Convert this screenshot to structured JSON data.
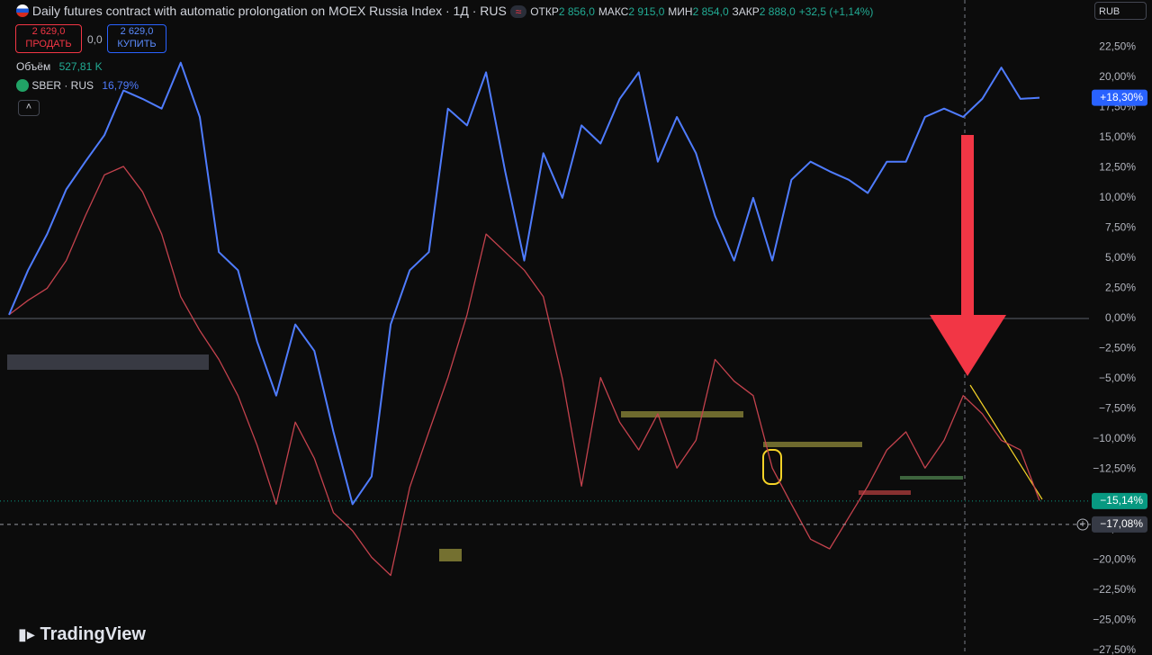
{
  "header": {
    "title": "Daily futures contract with automatic prolongation on MOEX Russia Index · 1Д · RUS",
    "open_label": "ОТКР",
    "open": "2 856,0",
    "high_label": "МАКС",
    "high": "2 915,0",
    "low_label": "МИН",
    "low": "2 854,0",
    "close_label": "ЗАКР",
    "close": "2 888,0",
    "change": "+32,5 (+1,14%)",
    "sell_price": "2 629,0",
    "sell": "ПРОДАТЬ",
    "spread": "0,0",
    "buy_price": "2 629,0",
    "buy": "КУПИТЬ",
    "volume_label": "Объём",
    "volume": "527,81 K",
    "sber_change": "16,79%",
    "currency": "RUB",
    "brand": "TradingView"
  },
  "chart_data": {
    "type": "line",
    "series": [
      {
        "color": "#c4424d",
        "values": [
          0.3,
          1.5,
          2.5,
          4.8,
          8.5,
          11.9,
          12.6,
          10.5,
          7.0,
          1.8,
          -1.0,
          -3.4,
          -6.4,
          -10.5,
          -15.4,
          -8.6,
          -11.6,
          -16.1,
          -17.6,
          -19.8,
          -21.3,
          -14.0,
          -9.4,
          -4.9,
          0.3,
          7.0,
          5.5,
          4.0,
          1.8,
          -5.0,
          -13.9,
          -4.9,
          -8.6,
          -10.9,
          -7.9,
          -12.4,
          -10.1,
          -3.4,
          -5.2,
          -6.4,
          -12.4,
          -15.4,
          -18.3,
          -19.1,
          -16.5,
          -13.9,
          -10.9,
          -9.4,
          -12.4,
          -10.1,
          -6.4,
          -7.9,
          -10.1,
          -10.9,
          -15.1
        ]
      },
      {
        "name": "SBER · RUS",
        "color": "#4f7cff",
        "values": [
          0.3,
          4.0,
          7.0,
          10.7,
          13.0,
          15.2,
          18.9,
          18.2,
          17.4,
          21.2,
          16.7,
          5.5,
          4.0,
          -1.9,
          -6.4,
          -0.5,
          -2.7,
          -9.4,
          -15.4,
          -13.1,
          -0.5,
          4.0,
          5.5,
          17.4,
          16.0,
          20.4,
          12.2,
          4.8,
          13.7,
          10.0,
          16.0,
          14.5,
          18.2,
          20.4,
          13.0,
          16.7,
          13.7,
          8.5,
          4.8,
          10.0,
          4.8,
          11.5,
          13.0,
          12.2,
          11.5,
          10.4,
          13.0,
          13.0,
          16.7,
          17.4,
          16.7,
          18.2,
          20.8,
          18.2,
          18.3
        ]
      }
    ],
    "ylim": [
      -27.9,
      26.4
    ],
    "yticks": [
      {
        "value": 22.5,
        "label": "22,50%"
      },
      {
        "value": 20,
        "label": "20,00%"
      },
      {
        "value": 17.5,
        "label": "17,50%"
      },
      {
        "value": 15,
        "label": "15,00%"
      },
      {
        "value": 12.5,
        "label": "12,50%"
      },
      {
        "value": 10,
        "label": "10,00%"
      },
      {
        "value": 7.5,
        "label": "7,50%"
      },
      {
        "value": 5,
        "label": "5,00%"
      },
      {
        "value": 2.5,
        "label": "2,50%"
      },
      {
        "value": 0,
        "label": "0,00%"
      },
      {
        "value": -2.5,
        "label": "−2,50%"
      },
      {
        "value": -5,
        "label": "−5,00%"
      },
      {
        "value": -7.5,
        "label": "−7,50%"
      },
      {
        "value": -10,
        "label": "−10,00%"
      },
      {
        "value": -12.5,
        "label": "−12,50%"
      },
      {
        "value": -15,
        "label": "−15,00%"
      },
      {
        "value": -17.5,
        "label": "−17,50%"
      },
      {
        "value": -20,
        "label": "−20,00%"
      },
      {
        "value": -22.5,
        "label": "−22,50%"
      },
      {
        "value": -25,
        "label": "−25,00%"
      },
      {
        "value": -27.5,
        "label": "−27,50%"
      }
    ],
    "price_labels": [
      {
        "value": 18.3,
        "label": "+18,30%",
        "color": "#2962ff"
      },
      {
        "value": -15.14,
        "label": "−15,14%",
        "color": "#089981"
      },
      {
        "value": -17.08,
        "label": "−17,08%",
        "color": "#363a45"
      }
    ],
    "grid": false
  }
}
